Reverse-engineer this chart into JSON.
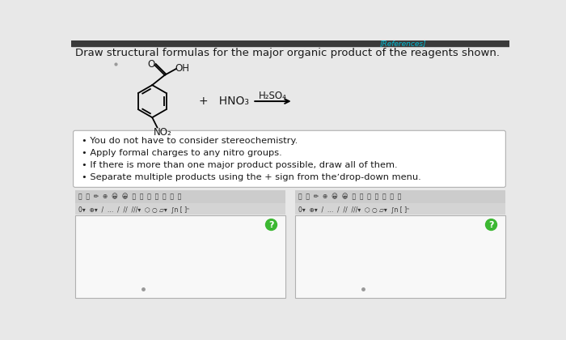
{
  "title": "Draw structural formulas for the major organic product of the reagents shown.",
  "references_text": "[References]",
  "bullet_points": [
    "You do not have to consider stereochemistry.",
    "Apply formal charges to any nitro groups.",
    "If there is more than one major product possible, draw all of them.",
    "Separate multiple products using the + sign from theʼdrop-down menu."
  ],
  "reagent_text": "+   HNO₃",
  "arrow_label": "H₂SO₄",
  "no2_label": "NO₂",
  "oh_label": "OH",
  "o_label": "O",
  "bg_color": "#e8e8e8",
  "white": "#ffffff",
  "toolbar_bg": "#d8d8d8",
  "header_bg": "#3a3a3a",
  "teal_text": "#00bcd4",
  "dark_text": "#1a1a1a",
  "green_circle": "#3cb832",
  "box_border": "#b0b0b0",
  "canvas_bg": "#f8f8f8"
}
